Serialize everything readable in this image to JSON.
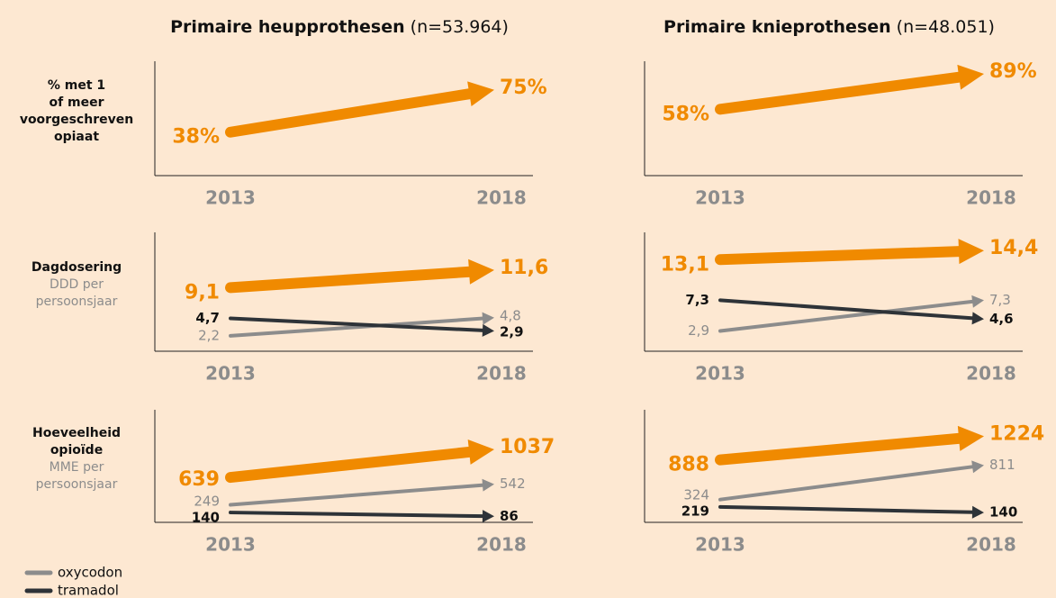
{
  "columns": [
    {
      "title": "Primaire heupprothesen",
      "n": "(n=53.964)"
    },
    {
      "title": "Primaire knieprothesen",
      "n": "(n=48.051)"
    }
  ],
  "rows": [
    {
      "label": [
        "% met 1",
        "of meer",
        "voorgeschreven",
        "opiaat"
      ],
      "sublabel": []
    },
    {
      "label": [
        "Dagdosering"
      ],
      "sublabel": [
        "DDD per",
        "persoonsjaar"
      ]
    },
    {
      "label": [
        "Hoeveelheid",
        "opioïde"
      ],
      "sublabel": [
        "MME per",
        "persoonsjaar"
      ]
    }
  ],
  "legend": [
    {
      "name": "oxycodon",
      "color": "#8c8c8c"
    },
    {
      "name": "tramadol",
      "color": "#2e3338"
    }
  ],
  "chart_data": [
    {
      "type": "line",
      "categories": [
        "2013",
        "2018"
      ],
      "ylim": [
        0,
        100
      ],
      "series": [
        {
          "color": "#f08a00",
          "values": [
            38,
            75
          ],
          "value_labels": [
            "38%",
            "75%"
          ]
        }
      ]
    },
    {
      "type": "line",
      "categories": [
        "2013",
        "2018"
      ],
      "ylim": [
        0,
        100
      ],
      "series": [
        {
          "color": "#f08a00",
          "values": [
            58,
            89
          ],
          "value_labels": [
            "58%",
            "89%"
          ]
        }
      ]
    },
    {
      "type": "line",
      "categories": [
        "2013",
        "2018"
      ],
      "ylim": [
        0,
        17
      ],
      "series": [
        {
          "color": "#f08a00",
          "values": [
            9.1,
            11.6
          ],
          "value_labels": [
            "9,1",
            "11,6"
          ]
        },
        {
          "color": "#8c8c8c",
          "values": [
            2.2,
            4.8
          ],
          "value_labels": [
            "2,2",
            "4,8"
          ]
        },
        {
          "color": "#2e3338",
          "values": [
            4.7,
            2.9
          ],
          "value_labels": [
            "4,7",
            "2,9"
          ]
        }
      ]
    },
    {
      "type": "line",
      "categories": [
        "2013",
        "2018"
      ],
      "ylim": [
        0,
        17
      ],
      "series": [
        {
          "color": "#f08a00",
          "values": [
            13.1,
            14.4
          ],
          "value_labels": [
            "13,1",
            "14,4"
          ]
        },
        {
          "color": "#8c8c8c",
          "values": [
            2.9,
            7.3
          ],
          "value_labels": [
            "2,9",
            "7,3"
          ]
        },
        {
          "color": "#2e3338",
          "values": [
            7.3,
            4.6
          ],
          "value_labels": [
            "7,3",
            "4,6"
          ]
        }
      ]
    },
    {
      "type": "line",
      "categories": [
        "2013",
        "2018"
      ],
      "ylim": [
        0,
        1600
      ],
      "series": [
        {
          "color": "#f08a00",
          "values": [
            639,
            1037
          ]
        },
        {
          "color": "#8c8c8c",
          "values": [
            249,
            542
          ]
        },
        {
          "color": "#2e3338",
          "values": [
            140,
            86
          ]
        }
      ]
    },
    {
      "type": "line",
      "categories": [
        "2013",
        "2018"
      ],
      "ylim": [
        0,
        1600
      ],
      "series": [
        {
          "color": "#f08a00",
          "values": [
            888,
            1224
          ]
        },
        {
          "color": "#8c8c8c",
          "values": [
            324,
            811
          ]
        },
        {
          "color": "#2e3338",
          "values": [
            219,
            140
          ]
        }
      ]
    }
  ]
}
